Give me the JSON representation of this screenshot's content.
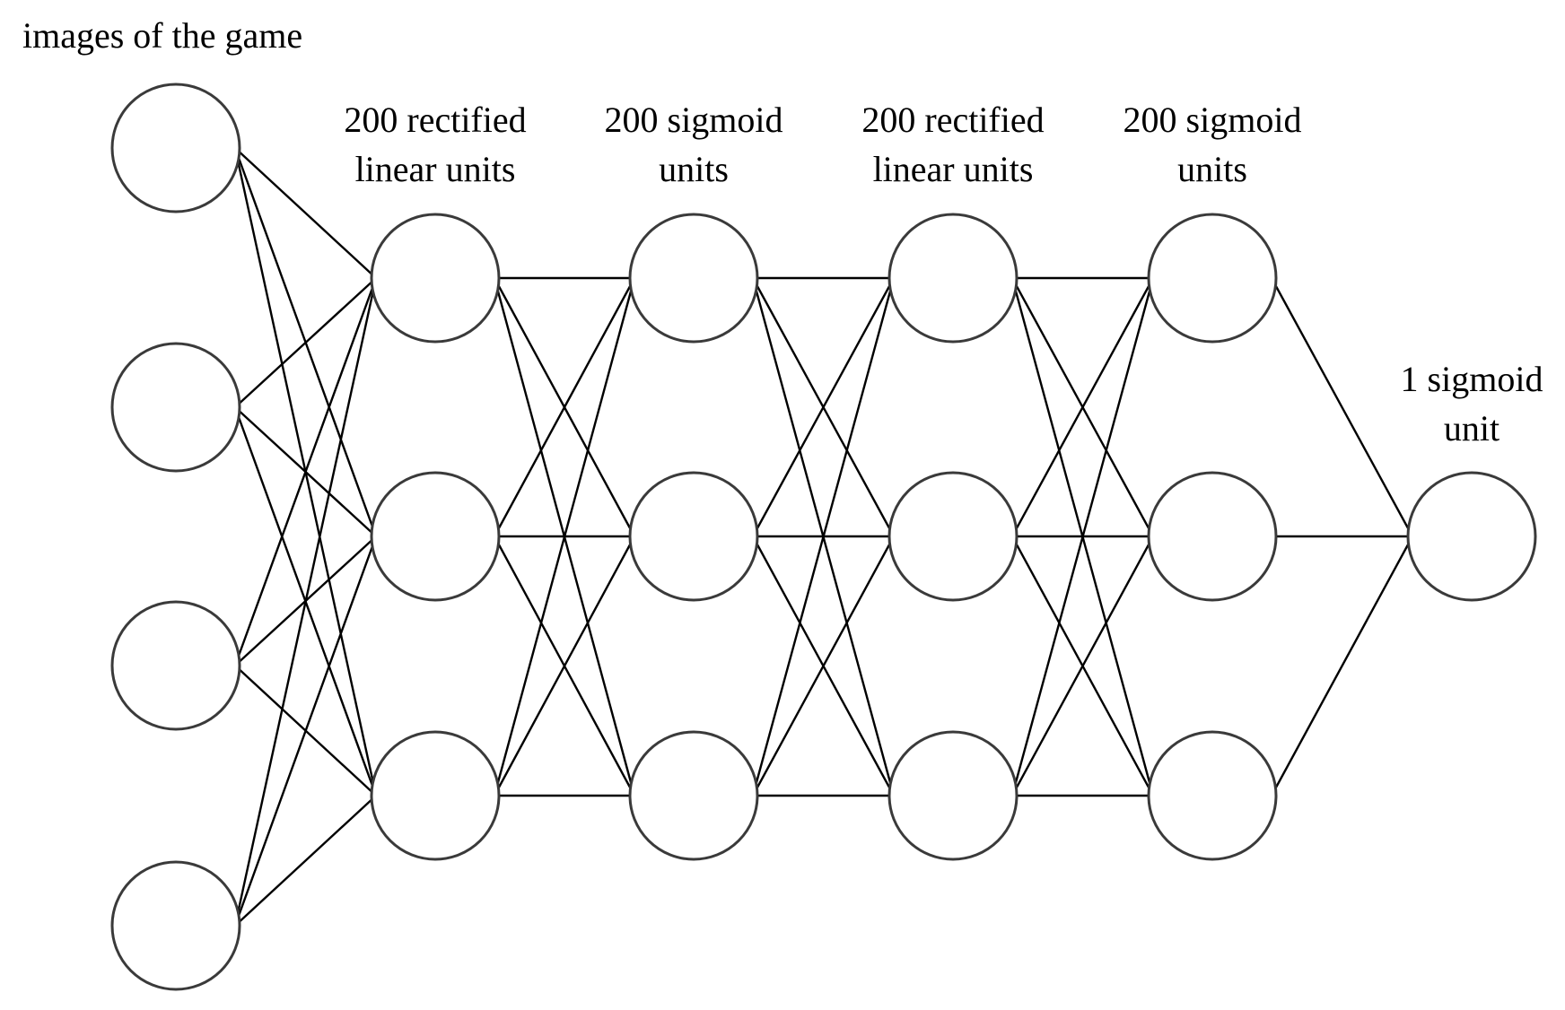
{
  "diagram": {
    "title": "images of the game",
    "layers": [
      {
        "id": "input",
        "label_lines": [],
        "node_count": 4
      },
      {
        "id": "hidden1",
        "label_lines": [
          "200 rectified",
          "linear units"
        ],
        "node_count": 3
      },
      {
        "id": "hidden2",
        "label_lines": [
          "200 sigmoid",
          "units"
        ],
        "node_count": 3
      },
      {
        "id": "hidden3",
        "label_lines": [
          "200 rectified",
          "linear units"
        ],
        "node_count": 3
      },
      {
        "id": "hidden4",
        "label_lines": [
          "200 sigmoid",
          "units"
        ],
        "node_count": 3
      },
      {
        "id": "output",
        "label_lines": [
          "1 sigmoid",
          "unit"
        ],
        "node_count": 1
      }
    ],
    "connectivity": "fully-connected"
  }
}
